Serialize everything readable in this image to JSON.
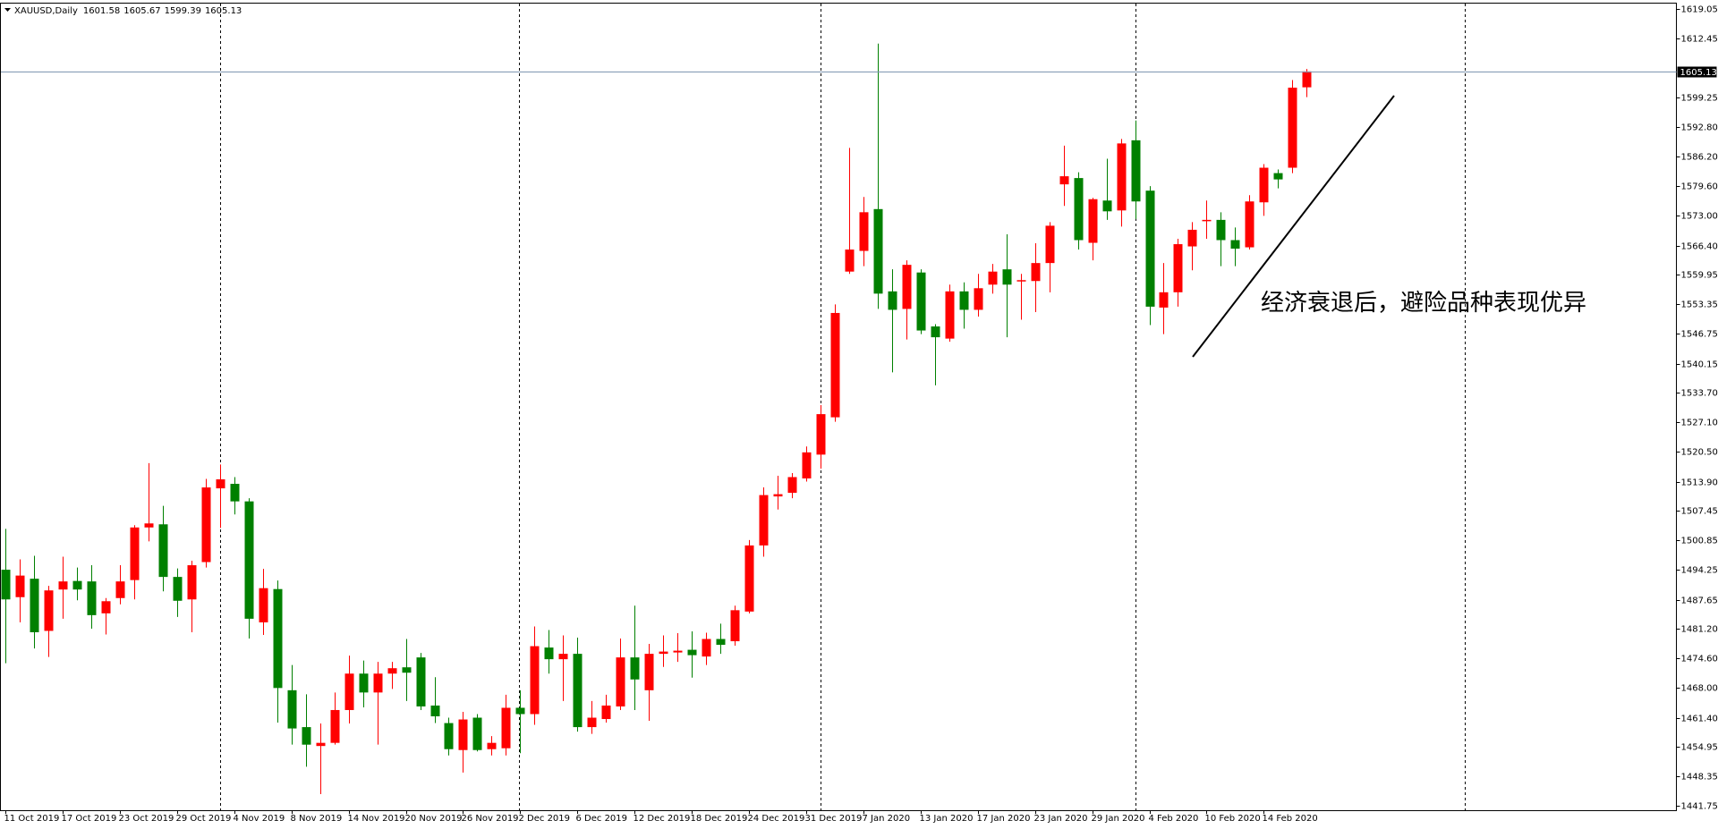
{
  "header": {
    "symbol": "XAUUSD,Daily"
  },
  "chart_data": {
    "type": "candlestick",
    "annotation": "经济衰退后，避险品种表现优异",
    "up_color": "#ff0000",
    "down_color": "#008000",
    "current_line_color": "#7f97b2",
    "ylim": [
      1440.8,
      1620.3
    ],
    "yticks": [
      1619.05,
      1612.45,
      1599.25,
      {
        "value": 1592.8,
        "label": "1592.80"
      },
      {
        "value": 1586.2,
        "label": "1586.20"
      },
      {
        "value": 1579.6,
        "label": "1579.60"
      },
      {
        "value": 1573,
        "label": "1573.00"
      },
      {
        "value": 1566.4,
        "label": "1566.40"
      },
      1559.95,
      1553.35,
      1546.75,
      1540.15,
      {
        "value": 1533.7,
        "label": "1533.70"
      },
      {
        "value": 1527.1,
        "label": "1527.10"
      },
      {
        "value": 1520.5,
        "label": "1520.50"
      },
      {
        "value": 1513.9,
        "label": "1513.90"
      },
      1507.45,
      1500.85,
      1494.25,
      1487.65,
      {
        "value": 1481.2,
        "label": "1481.20"
      },
      {
        "value": 1474.6,
        "label": "1474.60"
      },
      {
        "value": 1468,
        "label": "1468.00"
      },
      {
        "value": 1461.4,
        "label": "1461.40"
      },
      1454.95,
      1448.35,
      1441.75
    ],
    "categories": [
      "11 Oct 2019",
      null,
      null,
      null,
      "17 Oct 2019",
      null,
      null,
      null,
      "23 Oct 2019",
      null,
      null,
      null,
      "29 Oct 2019",
      null,
      null,
      null,
      "4 Nov 2019",
      null,
      null,
      null,
      "8 Nov 2019",
      null,
      null,
      null,
      "14 Nov 2019",
      null,
      null,
      null,
      "20 Nov 2019",
      null,
      null,
      null,
      "26 Nov 2019",
      null,
      null,
      null,
      "2 Dec 2019",
      null,
      null,
      null,
      "6 Dec 2019",
      null,
      null,
      null,
      "12 Dec 2019",
      null,
      null,
      null,
      "18 Dec 2019",
      null,
      null,
      null,
      "24 Dec 2019",
      null,
      null,
      null,
      "31 Dec 2019",
      null,
      null,
      null,
      "7 Jan 2020",
      null,
      null,
      null,
      "13 Jan 2020",
      null,
      null,
      null,
      "17 Jan 2020",
      null,
      null,
      null,
      "23 Jan 2020",
      null,
      null,
      null,
      "29 Jan 2020",
      null,
      null,
      null,
      "4 Feb 2020",
      null,
      null,
      null,
      "10 Feb 2020",
      null,
      null,
      null,
      "14 Feb 2020",
      null,
      null,
      null
    ],
    "open": [
      1494.3,
      1488.2,
      1492.3,
      1480.7,
      1489.9,
      1491.8,
      1491.7,
      1484.6,
      1488.0,
      1492.0,
      1503.7,
      1504.4,
      1492.7,
      1487.7,
      1496.0,
      1512.4,
      1513.4,
      1509.5,
      1482.6,
      1490.0,
      1467.5,
      1459.3,
      1455.1,
      1455.8,
      1463.1,
      1471.2,
      1467.0,
      1471.2,
      1472.6,
      1474.8,
      1464.1,
      1460.2,
      1454.2,
      1461.4,
      1454.4,
      1454.6,
      1463.6,
      1462.2,
      1477.0,
      1474.4,
      1475.6,
      1459.3,
      1461.1,
      1463.9,
      1474.8,
      1467.5,
      1475.6,
      1475.9,
      1476.5,
      1475.0,
      1478.9,
      1478.4,
      1485.0,
      1499.7,
      1510.6,
      1511.4,
      1514.6,
      1519.9,
      1528.2,
      1560.6,
      1565.2,
      1574.5,
      1556.2,
      1552.3,
      1560.4,
      1548.4,
      1545.7,
      1556.2,
      1552.1,
      1557.7,
      1561.1,
      1558.5,
      1558.5,
      1562.5,
      1580.0,
      1581.4,
      1567.0,
      1576.4,
      1574.2,
      1589.8,
      1578.6,
      1552.6,
      1556.0,
      1566.2,
      1571.8,
      1572.1,
      1567.6,
      1566.0,
      1576.0,
      1582.5,
      1583.7,
      1601.58
    ],
    "high": [
      1503.4,
      1496.6,
      1497.4,
      1490.7,
      1497.2,
      1494.8,
      1495.3,
      1488.0,
      1495.3,
      1504.2,
      1518.0,
      1508.5,
      1494.6,
      1496.3,
      1514.5,
      1517.7,
      1514.9,
      1510.2,
      1494.5,
      1491.9,
      1473.1,
      1466.6,
      1460.1,
      1467.0,
      1475.2,
      1474.1,
      1473.8,
      1473.8,
      1478.9,
      1475.8,
      1470.4,
      1461.4,
      1462.7,
      1462.2,
      1457.3,
      1466.5,
      1467.5,
      1481.7,
      1480.9,
      1479.7,
      1479.2,
      1465.1,
      1466.5,
      1479.0,
      1486.3,
      1477.8,
      1479.7,
      1480.2,
      1480.6,
      1480.3,
      1482.3,
      1486.3,
      1500.9,
      1512.6,
      1515.2,
      1515.8,
      1521.7,
      1530.9,
      1553.3,
      1588.1,
      1577.2,
      1611.3,
      1561.1,
      1563.1,
      1561.1,
      1548.9,
      1557.7,
      1558.2,
      1560.1,
      1562.3,
      1568.9,
      1560.1,
      1566.9,
      1571.6,
      1588.6,
      1582.7,
      1577.0,
      1585.7,
      1590.1,
      1594.2,
      1579.6,
      1562.5,
      1567.9,
      1571.6,
      1576.4,
      1573.8,
      1570.4,
      1577.6,
      1584.5,
      1583.3,
      1603.2,
      1605.67
    ],
    "low": [
      1473.5,
      1482.6,
      1476.8,
      1474.9,
      1483.4,
      1487.5,
      1481.2,
      1479.9,
      1486.6,
      1487.7,
      1500.6,
      1489.5,
      1483.8,
      1480.4,
      1494.8,
      1503.6,
      1506.6,
      1479.0,
      1479.8,
      1460.3,
      1455.4,
      1450.5,
      1444.4,
      1455.4,
      1460.1,
      1463.7,
      1455.4,
      1467.8,
      1465.1,
      1463.1,
      1460.2,
      1453.0,
      1449.2,
      1453.9,
      1453.0,
      1453.0,
      1453.5,
      1459.8,
      1471.2,
      1465.1,
      1458.3,
      1457.8,
      1460.3,
      1463.1,
      1463.1,
      1460.7,
      1472.7,
      1473.8,
      1470.3,
      1473.1,
      1475.6,
      1477.4,
      1484.6,
      1497.2,
      1507.7,
      1510.2,
      1513.9,
      1516.8,
      1527.2,
      1560.1,
      1561.8,
      1552.3,
      1538.2,
      1545.5,
      1546.7,
      1535.3,
      1545.0,
      1547.9,
      1550.6,
      1555.7,
      1546.0,
      1549.9,
      1551.6,
      1556.0,
      1575.2,
      1565.5,
      1563.1,
      1572.1,
      1570.6,
      1572.3,
      1548.7,
      1546.7,
      1552.8,
      1560.9,
      1567.9,
      1561.8,
      1561.8,
      1565.5,
      1573.0,
      1579.1,
      1582.5,
      1599.39
    ],
    "close": [
      1487.7,
      1493.0,
      1480.4,
      1489.7,
      1491.7,
      1489.9,
      1484.2,
      1487.3,
      1491.7,
      1503.7,
      1504.6,
      1492.7,
      1487.4,
      1495.3,
      1512.6,
      1514.4,
      1509.5,
      1483.4,
      1490.2,
      1468.0,
      1459.0,
      1455.4,
      1455.8,
      1463.1,
      1471.2,
      1467.0,
      1471.2,
      1472.4,
      1471.4,
      1463.9,
      1461.7,
      1454.4,
      1461.0,
      1454.2,
      1455.8,
      1463.6,
      1462.2,
      1477.3,
      1474.4,
      1475.6,
      1459.3,
      1461.4,
      1464.1,
      1474.8,
      1469.9,
      1475.6,
      1476.1,
      1476.3,
      1475.3,
      1478.9,
      1477.6,
      1485.3,
      1499.7,
      1510.9,
      1511.1,
      1514.9,
      1520.4,
      1528.9,
      1551.4,
      1565.5,
      1573.8,
      1555.7,
      1552.1,
      1562.1,
      1547.5,
      1546.0,
      1556.2,
      1552.1,
      1556.9,
      1560.6,
      1557.7,
      1558.7,
      1562.5,
      1570.8,
      1581.8,
      1567.6,
      1576.7,
      1574.0,
      1589.1,
      1576.2,
      1552.8,
      1556.0,
      1566.7,
      1569.9,
      1572.1,
      1567.6,
      1565.7,
      1576.2,
      1583.7,
      1581.1,
      1601.5,
      1605.13
    ]
  }
}
